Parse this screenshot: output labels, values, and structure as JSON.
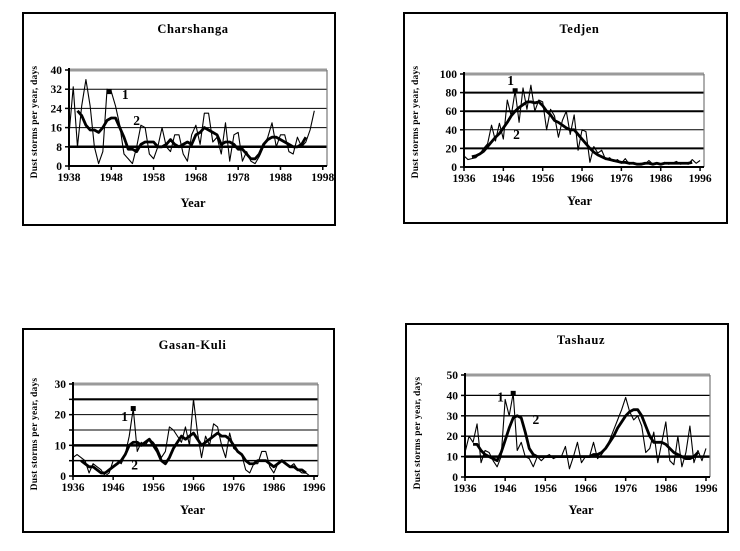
{
  "figure": {
    "background": "#ffffff",
    "frame_color": "#000000",
    "line_color": "#000000",
    "plot_top_border_color": "#9a9a9a"
  },
  "chart_data": [
    {
      "type": "line",
      "title": "Charshanga",
      "xlabel": "Year",
      "ylabel": "Dust storms per year, days",
      "xlim": [
        1938,
        1999
      ],
      "ylim": [
        0,
        40
      ],
      "xticks": [
        1938,
        1948,
        1958,
        1968,
        1978,
        1988,
        1998
      ],
      "yticks": [
        0,
        8,
        16,
        24,
        32,
        40
      ],
      "gridlines": [
        {
          "y": 8,
          "w": 2.5
        },
        {
          "y": 16,
          "w": 1
        },
        {
          "y": 24,
          "w": 1
        },
        {
          "y": 32,
          "w": 1
        }
      ],
      "legend_position": "inline-labels",
      "grid": "horizontal",
      "series": [
        {
          "name": "1",
          "style": "thin",
          "x_start": 1938,
          "x_step": 1,
          "label_x": 1950.5,
          "label_y": 28,
          "marker": [
            1947.5,
            31
          ],
          "values": [
            13,
            33,
            8,
            25,
            36,
            25,
            8,
            1,
            6,
            32,
            31,
            25,
            17,
            5,
            3,
            1,
            8,
            17,
            16,
            5,
            3,
            8,
            16,
            8,
            6,
            13,
            13,
            5,
            2,
            13,
            17,
            9,
            22,
            22,
            10,
            12,
            5,
            18,
            2,
            13,
            14,
            2,
            6,
            2,
            1,
            4,
            8,
            12,
            18,
            8,
            13,
            13,
            6,
            5,
            12,
            8,
            10,
            15,
            23
          ]
        },
        {
          "name": "2",
          "style": "thick",
          "x_start": 1940,
          "x_step": 1,
          "label_x": 1953.2,
          "label_y": 17,
          "values": [
            23,
            21,
            17,
            15,
            15,
            14,
            16,
            19,
            20,
            20,
            16,
            12,
            7,
            7,
            6,
            9,
            10,
            10,
            10,
            8,
            8,
            9,
            11,
            9,
            8,
            9,
            10,
            9,
            13,
            14,
            16,
            15,
            14,
            13,
            9,
            10,
            10,
            9,
            7,
            7,
            5,
            3,
            3,
            5,
            9,
            11,
            12,
            12,
            11,
            10,
            9,
            8,
            8,
            9,
            12
          ]
        }
      ]
    },
    {
      "type": "line",
      "title": "Tedjen",
      "xlabel": "Year",
      "ylabel": "Dust storms per year, days",
      "xlim": [
        1936,
        1997
      ],
      "ylim": [
        0,
        100
      ],
      "xticks": [
        1936,
        1946,
        1956,
        1966,
        1976,
        1986,
        1996
      ],
      "yticks": [
        0,
        20,
        40,
        60,
        80,
        100
      ],
      "gridlines": [
        {
          "y": 20,
          "w": 2
        },
        {
          "y": 40,
          "w": 1
        },
        {
          "y": 60,
          "w": 2
        },
        {
          "y": 80,
          "w": 2
        }
      ],
      "legend_position": "inline-labels",
      "grid": "horizontal",
      "series": [
        {
          "name": "1",
          "style": "thin",
          "x_start": 1936,
          "x_step": 1,
          "label_x": 1947,
          "label_y": 88,
          "marker": [
            1949,
            82
          ],
          "values": [
            12,
            8,
            9,
            10,
            14,
            20,
            25,
            45,
            28,
            47,
            30,
            72,
            55,
            82,
            48,
            85,
            62,
            88,
            60,
            72,
            70,
            40,
            62,
            55,
            32,
            50,
            60,
            35,
            56,
            18,
            40,
            38,
            5,
            22,
            15,
            18,
            8,
            10,
            6,
            8,
            4,
            9,
            3,
            5,
            3,
            4,
            3,
            7,
            3,
            4,
            3,
            5,
            3,
            4,
            6,
            3,
            4,
            3,
            8,
            4,
            7
          ]
        },
        {
          "name": "2",
          "style": "thick",
          "x_start": 1938,
          "x_step": 1,
          "label_x": 1948.5,
          "label_y": 30,
          "values": [
            11,
            12,
            14,
            17,
            22,
            27,
            32,
            36,
            42,
            48,
            55,
            60,
            64,
            67,
            70,
            70,
            69,
            70,
            66,
            60,
            56,
            50,
            48,
            45,
            42,
            40,
            40,
            35,
            30,
            25,
            20,
            16,
            13,
            11,
            9,
            8,
            7,
            6,
            5,
            5,
            4,
            4,
            3,
            3,
            4,
            4,
            3,
            4,
            3,
            4,
            4,
            4,
            4,
            4,
            4,
            4,
            5
          ]
        }
      ]
    },
    {
      "type": "line",
      "title": "Gasan-Kuli",
      "xlabel": "Year",
      "ylabel": "Dust storms per year, days",
      "xlim": [
        1936,
        1997
      ],
      "ylim": [
        0,
        30
      ],
      "xticks": [
        1936,
        1946,
        1956,
        1966,
        1976,
        1986,
        1996
      ],
      "yticks": [
        0,
        10,
        20,
        30
      ],
      "ytick_marks": [
        0,
        5,
        10,
        15,
        20,
        25,
        30
      ],
      "gridlines": [
        {
          "y": 5,
          "w": 1.5
        },
        {
          "y": 10,
          "w": 2.5
        },
        {
          "y": 15,
          "w": 1
        },
        {
          "y": 20,
          "w": 1
        },
        {
          "y": 25,
          "w": 2.2
        }
      ],
      "legend_position": "inline-labels",
      "grid": "horizontal",
      "series": [
        {
          "name": "1",
          "style": "thin",
          "x_start": 1936,
          "x_step": 1,
          "label_x": 1948,
          "label_y": 18,
          "marker": [
            1951,
            22
          ],
          "values": [
            6,
            7,
            6,
            5,
            1,
            4,
            3,
            2,
            0,
            1,
            5,
            5,
            4,
            7,
            13,
            22,
            8,
            11,
            10,
            12,
            11,
            9,
            6,
            8,
            16,
            15,
            13,
            11,
            16,
            10,
            25,
            14,
            6,
            13,
            10,
            17,
            16,
            10,
            6,
            14,
            9,
            8,
            7,
            2,
            1,
            4,
            4,
            8,
            8,
            3,
            1,
            4,
            5,
            4,
            3,
            4,
            2,
            1,
            1,
            0,
            0
          ]
        },
        {
          "name": "2",
          "style": "thick",
          "x_start": 1938,
          "x_step": 1,
          "label_x": 1950.5,
          "label_y": 2.2,
          "values": [
            5,
            4,
            3,
            3,
            2,
            1,
            1,
            2,
            3,
            4,
            5,
            7,
            10,
            11,
            11,
            10,
            11,
            12,
            10,
            8,
            5,
            4,
            6,
            9,
            11,
            13,
            12,
            13,
            14,
            12,
            10,
            11,
            12,
            13,
            14,
            13,
            13,
            12,
            10,
            8,
            7,
            5,
            4,
            4,
            5,
            5,
            5,
            4,
            3,
            4,
            5,
            4,
            3,
            3,
            2,
            2,
            1
          ]
        }
      ]
    },
    {
      "type": "line",
      "title": "Tashauz",
      "xlabel": "Year",
      "ylabel": "Dust storms per year, days",
      "xlim": [
        1936,
        1997
      ],
      "ylim": [
        0,
        50
      ],
      "xticks": [
        1936,
        1946,
        1956,
        1966,
        1976,
        1986,
        1996
      ],
      "yticks": [
        0,
        10,
        20,
        30,
        40,
        50
      ],
      "gridlines": [
        {
          "y": 10,
          "w": 2.5
        },
        {
          "y": 20,
          "w": 1.3
        },
        {
          "y": 30,
          "w": 1.3
        },
        {
          "y": 40,
          "w": 1.3
        }
      ],
      "legend_position": "inline-labels",
      "grid": "horizontal",
      "series": [
        {
          "name": "1",
          "style": "thin",
          "x_start": 1936,
          "x_step": 1,
          "label_x": 1944,
          "label_y": 37,
          "marker": [
            1948,
            41
          ],
          "values": [
            12,
            20,
            17,
            26,
            7,
            13,
            12,
            8,
            5,
            10,
            38,
            30,
            41,
            13,
            17,
            10,
            9,
            5,
            10,
            8,
            10,
            11,
            9,
            10,
            10,
            15,
            4,
            10,
            17,
            7,
            10,
            10,
            17,
            9,
            11,
            14,
            18,
            23,
            28,
            33,
            39,
            32,
            28,
            30,
            25,
            12,
            14,
            22,
            7,
            17,
            27,
            8,
            6,
            20,
            5,
            12,
            25,
            7,
            13,
            8,
            14
          ]
        },
        {
          "name": "2",
          "style": "thick",
          "x_start": 1938,
          "x_step": 1,
          "label_x": 1952.8,
          "label_y": 26,
          "values": [
            16,
            16,
            13,
            11,
            10,
            9,
            8,
            12,
            18,
            24,
            29,
            30,
            29,
            22,
            14,
            11,
            10,
            10,
            10,
            10,
            10,
            10,
            10,
            10,
            10,
            10,
            10,
            10,
            10,
            10,
            11,
            11,
            12,
            14,
            17,
            20,
            24,
            27,
            30,
            32,
            33,
            33,
            30,
            25,
            20,
            17,
            17,
            17,
            16,
            14,
            12,
            11,
            10,
            9,
            9,
            10,
            12
          ]
        }
      ]
    }
  ]
}
